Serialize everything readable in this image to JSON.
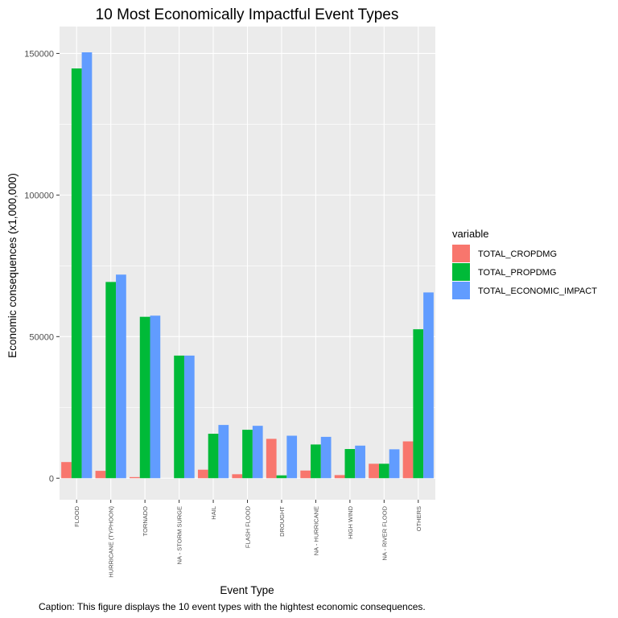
{
  "chart_data": {
    "type": "bar",
    "title": "10 Most Economically Impactful Event Types",
    "xlabel": "Event Type",
    "ylabel": "Economic consequences (x1,000,000)",
    "caption": "Caption: This figure displays the 10 event types with the hightest economic consequences.",
    "categories": [
      "FLOOD",
      "HURRICANE (TYPHOON)",
      "TORNADO",
      "NA - STORM SURGE",
      "HAIL",
      "FLASH FLOOD",
      "DROUGHT",
      "NA - HURRICANE",
      "HIGH WIND",
      "NA - RIVER FLOOD",
      "OTHERS"
    ],
    "series": [
      {
        "name": "TOTAL_CROPDMG",
        "color": "#F8766D",
        "values": [
          5700,
          2600,
          400,
          0,
          3000,
          1400,
          13900,
          2700,
          1100,
          5100,
          13000
        ]
      },
      {
        "name": "TOTAL_PROPDMG",
        "color": "#00BA38",
        "values": [
          144700,
          69300,
          57000,
          43300,
          15700,
          17100,
          1000,
          11900,
          10300,
          5100,
          52600
        ]
      },
      {
        "name": "TOTAL_ECONOMIC_IMPACT",
        "color": "#619CFF",
        "values": [
          150400,
          71900,
          57400,
          43300,
          18800,
          18500,
          15000,
          14600,
          11500,
          10200,
          65600
        ]
      }
    ],
    "yticks": [
      0,
      50000,
      100000,
      150000
    ],
    "ytick_labels": [
      "0",
      "50000",
      "100000",
      "150000"
    ],
    "ylim": [
      -7600,
      159500
    ],
    "legend": {
      "title": "variable",
      "position": "right"
    },
    "grid": true,
    "panel_background": "#EBEBEB"
  }
}
